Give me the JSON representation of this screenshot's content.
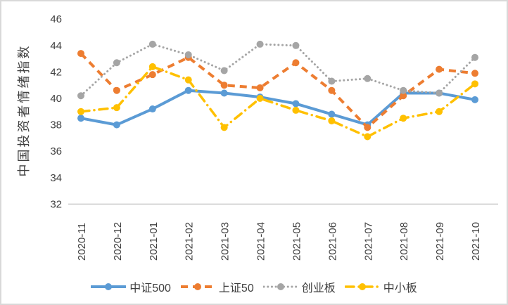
{
  "chart_data": {
    "type": "line",
    "title": "",
    "y_axis_title": "中国投资者情绪指数",
    "x": [
      "2020-11",
      "2020-12",
      "2021-01",
      "2021-02",
      "2021-03",
      "2021-04",
      "2021-05",
      "2021-06",
      "2021-07",
      "2021-08",
      "2021-09",
      "2021-10"
    ],
    "y_ticks": [
      32,
      34,
      36,
      38,
      40,
      42,
      44,
      46
    ],
    "ylim": [
      32,
      46
    ],
    "grid": false,
    "legend_position": "bottom",
    "axis_color": "#bfbfbf",
    "text_color": "#404040",
    "series": [
      {
        "name": "中证500",
        "color": "#5B9BD5",
        "style": "solid",
        "values": [
          38.5,
          38.0,
          39.2,
          40.6,
          40.4,
          40.1,
          39.6,
          38.8,
          38.0,
          40.4,
          40.4,
          39.9
        ]
      },
      {
        "name": "上证50",
        "color": "#ED7D31",
        "style": "dashed",
        "values": [
          43.4,
          40.6,
          41.8,
          43.1,
          41.0,
          40.8,
          42.7,
          40.6,
          37.8,
          40.2,
          42.2,
          41.9
        ]
      },
      {
        "name": "创业板",
        "color": "#A5A5A5",
        "style": "dotted",
        "values": [
          40.2,
          42.7,
          44.1,
          43.3,
          42.1,
          44.1,
          44.0,
          41.3,
          41.5,
          40.6,
          40.4,
          43.1
        ]
      },
      {
        "name": "中小板",
        "color": "#FFC000",
        "style": "dashdot",
        "values": [
          39.0,
          39.3,
          42.4,
          41.4,
          37.8,
          40.0,
          39.1,
          38.3,
          37.1,
          38.5,
          39.0,
          41.1
        ]
      }
    ]
  }
}
